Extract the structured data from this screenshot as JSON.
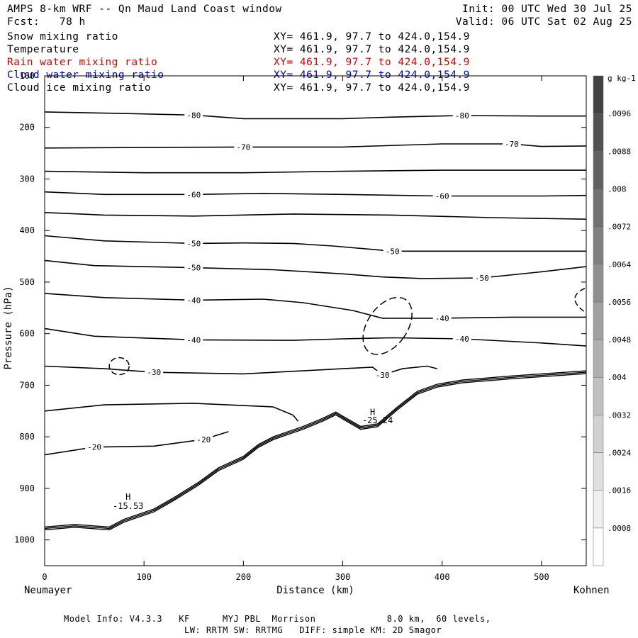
{
  "header": {
    "title": "AMPS 8-km WRF -- Qn Maud Land Coast window",
    "init": "Init: 00 UTC Wed 30 Jul 25",
    "fcst": "Fcst:   78 h",
    "valid": "Valid: 06 UTC Sat 02 Aug 25"
  },
  "fields": [
    {
      "name": "Snow mixing ratio",
      "xy": "XY= 461.9, 97.7 to 424.0,154.9",
      "color": "#000000"
    },
    {
      "name": "Temperature",
      "xy": "XY= 461.9, 97.7 to 424.0,154.9",
      "color": "#000000"
    },
    {
      "name": "Rain water mixing ratio",
      "xy": "XY= 461.9, 97.7 to 424.0,154.9",
      "color": "#dd0000"
    },
    {
      "name": "Cloud water mixing ratio",
      "xy": "XY= 461.9, 97.7 to 424.0,154.9",
      "color": "#0000cc"
    },
    {
      "name": "Cloud ice mixing ratio",
      "xy": "XY= 461.9, 97.7 to 424.0,154.9",
      "color": "#000000"
    }
  ],
  "footer": {
    "line1": "Model Info: V4.3.3   KF      MYJ PBL  Morrison             8.0 km,  60 levels,",
    "line2": "LW: RRTM SW: RRTMG   DIFF: simple KM: 2D Smagor"
  },
  "chart_data": {
    "type": "contour",
    "xlabel": "Distance (km)",
    "ylabel": "Pressure (hPa)",
    "x_ticks": [
      0,
      100,
      200,
      300,
      400,
      500
    ],
    "y_ticks": [
      100,
      200,
      300,
      400,
      500,
      600,
      700,
      800,
      900,
      1000
    ],
    "xlim": [
      0,
      545
    ],
    "ylim": [
      1050,
      100
    ],
    "x_end_labels": {
      "left": "Neumayer",
      "right": "Kohnen"
    },
    "colorbar": {
      "unit": "g kg-1",
      "ticks": [
        ".0008",
        ".0016",
        ".0024",
        ".0032",
        ".004",
        ".0048",
        ".0056",
        ".0064",
        ".0072",
        ".008",
        ".0088",
        ".0096"
      ]
    },
    "temperature_contours": [
      {
        "level": -20,
        "label": "-20",
        "points": [
          [
            0,
            835
          ],
          [
            50,
            820
          ],
          [
            110,
            818
          ],
          [
            160,
            805
          ],
          [
            185,
            790
          ]
        ]
      },
      {
        "level": -20,
        "label": "",
        "points": [
          [
            0,
            750
          ],
          [
            60,
            738
          ],
          [
            150,
            735
          ],
          [
            230,
            742
          ],
          [
            250,
            758
          ],
          [
            255,
            770
          ]
        ]
      },
      {
        "level": -30,
        "label": "-30",
        "points": [
          [
            0,
            663
          ],
          [
            60,
            668
          ],
          [
            110,
            675
          ],
          [
            200,
            678
          ],
          [
            260,
            672
          ],
          [
            300,
            668
          ],
          [
            330,
            665
          ],
          [
            340,
            680
          ],
          [
            360,
            668
          ],
          [
            385,
            663
          ],
          [
            395,
            668
          ]
        ]
      },
      {
        "level": -40,
        "label": "-40",
        "points": [
          [
            0,
            590
          ],
          [
            50,
            605
          ],
          [
            150,
            612
          ],
          [
            250,
            613
          ],
          [
            300,
            610
          ],
          [
            350,
            608
          ],
          [
            420,
            610
          ],
          [
            500,
            618
          ],
          [
            545,
            624
          ]
        ]
      },
      {
        "level": -40,
        "label": "-40",
        "points": [
          [
            0,
            522
          ],
          [
            60,
            530
          ],
          [
            150,
            535
          ],
          [
            220,
            533
          ],
          [
            260,
            540
          ],
          [
            310,
            555
          ],
          [
            340,
            570
          ],
          [
            400,
            570
          ],
          [
            470,
            568
          ],
          [
            545,
            568
          ]
        ]
      },
      {
        "level": -50,
        "label": "-50",
        "points": [
          [
            0,
            458
          ],
          [
            50,
            468
          ],
          [
            150,
            472
          ],
          [
            230,
            476
          ],
          [
            300,
            484
          ],
          [
            340,
            490
          ],
          [
            380,
            493
          ],
          [
            440,
            492
          ],
          [
            500,
            480
          ],
          [
            545,
            470
          ]
        ]
      },
      {
        "level": -50,
        "label": "-50",
        "points": [
          [
            0,
            410
          ],
          [
            60,
            420
          ],
          [
            150,
            425
          ],
          [
            200,
            424
          ],
          [
            250,
            425
          ],
          [
            290,
            430
          ],
          [
            350,
            440
          ],
          [
            450,
            440
          ],
          [
            545,
            440
          ]
        ]
      },
      {
        "level": -60,
        "label": "",
        "points": [
          [
            0,
            365
          ],
          [
            60,
            370
          ],
          [
            150,
            372
          ],
          [
            250,
            368
          ],
          [
            350,
            370
          ],
          [
            450,
            375
          ],
          [
            545,
            378
          ]
        ]
      },
      {
        "level": -60,
        "label": "-60",
        "points": [
          [
            0,
            325
          ],
          [
            60,
            330
          ],
          [
            150,
            330
          ],
          [
            220,
            328
          ],
          [
            300,
            330
          ],
          [
            400,
            333
          ],
          [
            500,
            333
          ],
          [
            545,
            332
          ]
        ]
      },
      {
        "level": -70,
        "label": "",
        "points": [
          [
            0,
            285
          ],
          [
            100,
            288
          ],
          [
            200,
            288
          ],
          [
            300,
            285
          ],
          [
            400,
            283
          ],
          [
            545,
            283
          ]
        ]
      },
      {
        "level": -70,
        "label": "-70",
        "points": [
          [
            0,
            240
          ],
          [
            100,
            239
          ],
          [
            200,
            238
          ],
          [
            300,
            238
          ],
          [
            400,
            232
          ],
          [
            470,
            232
          ],
          [
            500,
            237
          ],
          [
            545,
            236
          ]
        ]
      },
      {
        "level": -80,
        "label": "-80",
        "points": [
          [
            0,
            170
          ],
          [
            80,
            173
          ],
          [
            150,
            176
          ],
          [
            200,
            183
          ],
          [
            300,
            183
          ],
          [
            350,
            180
          ],
          [
            420,
            177
          ],
          [
            500,
            178
          ],
          [
            545,
            178
          ]
        ]
      }
    ],
    "terrain": [
      [
        0,
        975
      ],
      [
        30,
        970
      ],
      [
        65,
        975
      ],
      [
        80,
        960
      ],
      [
        110,
        940
      ],
      [
        130,
        918
      ],
      [
        155,
        888
      ],
      [
        175,
        860
      ],
      [
        200,
        838
      ],
      [
        215,
        815
      ],
      [
        230,
        800
      ],
      [
        245,
        790
      ],
      [
        260,
        780
      ],
      [
        280,
        764
      ],
      [
        293,
        752
      ],
      [
        300,
        760
      ],
      [
        318,
        780
      ],
      [
        335,
        775
      ],
      [
        355,
        742
      ],
      [
        375,
        712
      ],
      [
        395,
        698
      ],
      [
        420,
        690
      ],
      [
        470,
        682
      ],
      [
        545,
        672
      ]
    ],
    "annotations": [
      {
        "text": "H",
        "x": 84,
        "y": 922
      },
      {
        "text": "-15.53",
        "x": 84,
        "y": 940
      },
      {
        "text": "H",
        "x": 330,
        "y": 758
      },
      {
        "text": "-25.24",
        "x": 335,
        "y": 774
      }
    ]
  }
}
